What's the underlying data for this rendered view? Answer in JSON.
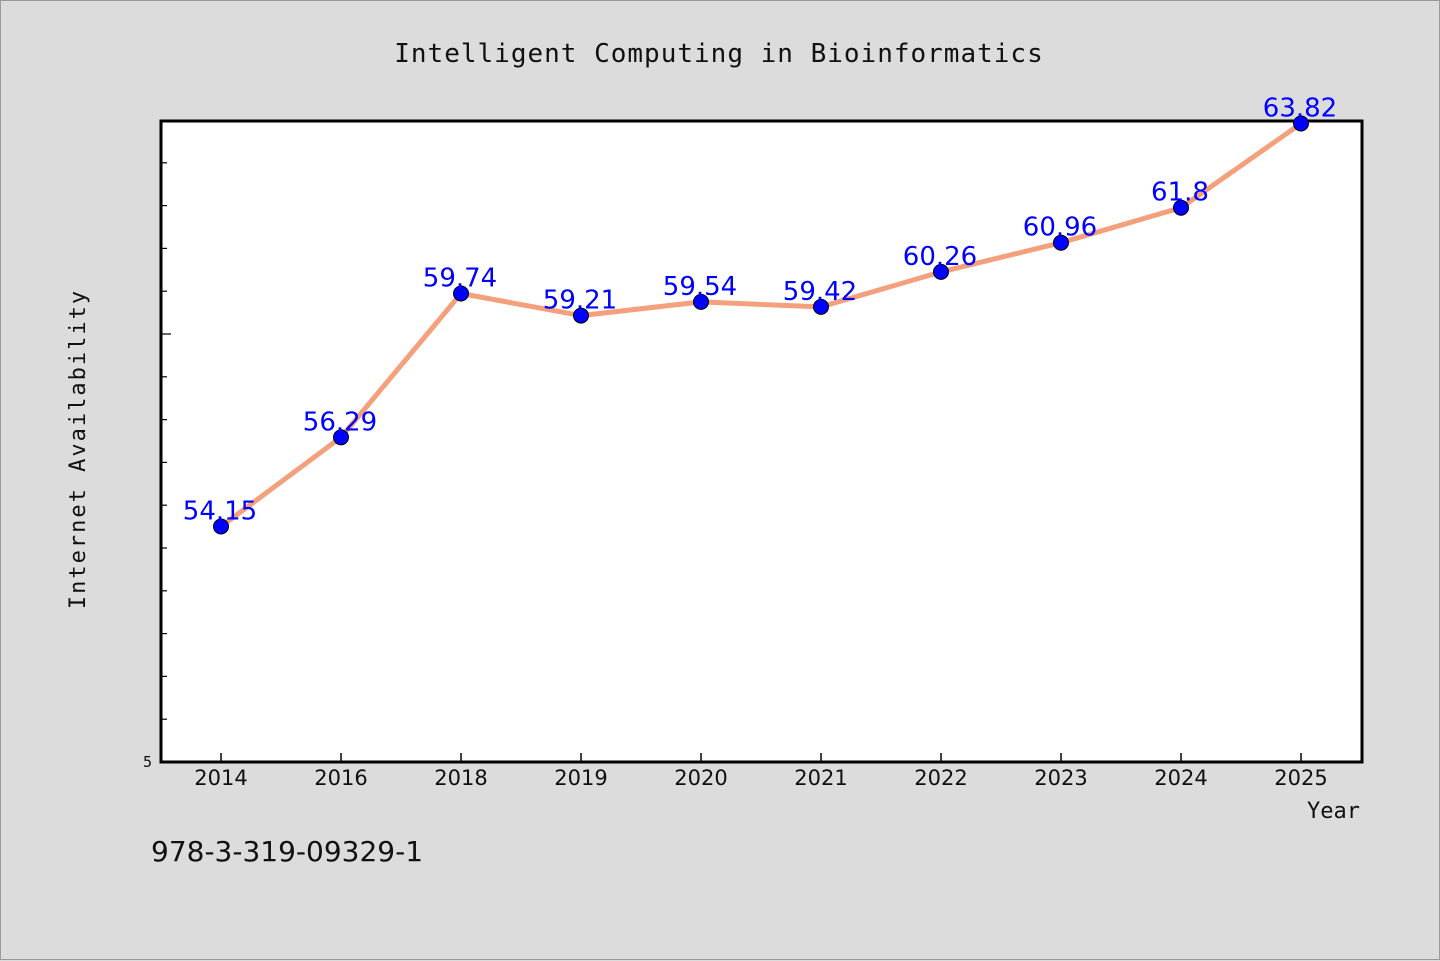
{
  "chart_data": {
    "type": "line",
    "title": "Intelligent Computing in Bioinformatics",
    "xlabel": "Year",
    "ylabel": "Internet Availability",
    "categories": [
      "2014",
      "2016",
      "2018",
      "2019",
      "2020",
      "2021",
      "2022",
      "2023",
      "2024",
      "2025"
    ],
    "series": [
      {
        "values": [
          54.15,
          56.29,
          59.74,
          59.21,
          59.54,
          59.42,
          60.26,
          60.96,
          61.8,
          63.82
        ],
        "labels": [
          "54.15",
          "56.29",
          "59.74",
          "59.21",
          "59.54",
          "59.42",
          "60.26",
          "60.96",
          "61.8",
          "63.82"
        ]
      }
    ],
    "ytick_labels": [
      "5"
    ],
    "ylim": [
      48.5,
      64.0
    ],
    "grid": false,
    "legend": "none",
    "colors": {
      "line": "#f4a07c",
      "marker": "#0000ff",
      "data_label": "#0000ff",
      "background": "#dcdcdc",
      "plot_background": "#ffffff"
    }
  },
  "footer": {
    "isbn": "978-3-319-09329-1"
  }
}
